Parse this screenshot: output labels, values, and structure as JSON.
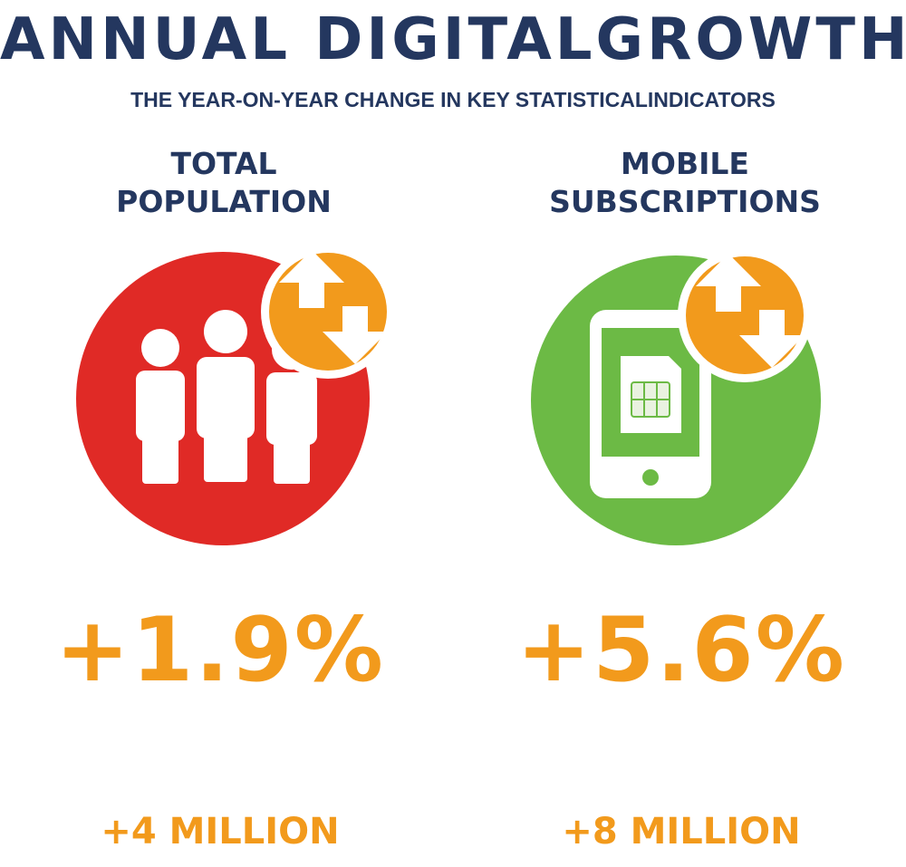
{
  "header": {
    "title": "ANNUAL DIGITALGROWTH",
    "subtitle": "THE YEAR-ON-YEAR CHANGE IN KEY STATISTICALINDICATORS"
  },
  "colors": {
    "navy": "#24375f",
    "red": "#e02a26",
    "green": "#6cba45",
    "orange": "#f29a1c",
    "white": "#ffffff"
  },
  "stats": [
    {
      "heading_line1": "TOTAL",
      "heading_line2": "POPULATION",
      "icon": "people-icon",
      "change_pct": "+1.9%",
      "change_abs": "+4 MILLION"
    },
    {
      "heading_line1": "MOBILE",
      "heading_line2": "SUBSCRIPTIONS",
      "icon": "mobile-phone-icon",
      "change_pct": "+5.6%",
      "change_abs": "+8 MILLION"
    }
  ]
}
